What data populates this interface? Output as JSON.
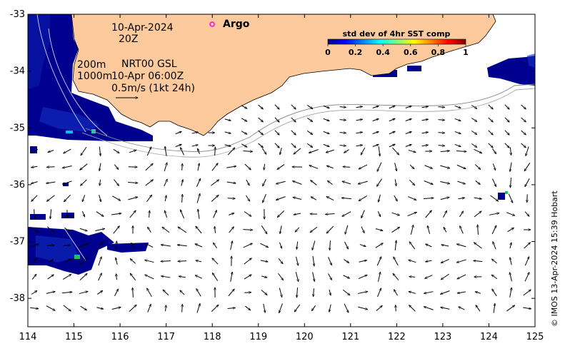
{
  "map": {
    "date_label": "10-Apr-2024",
    "hour_label": "20Z",
    "argo_label": "Argo",
    "depth_label_1": "200m",
    "depth_label_2": "1000m",
    "source_label": "NRT00 GSL",
    "source_time": "10-Apr 06:00Z",
    "scale_label": "0.5m/s (1kt 24h)",
    "copyright": "© IMOS 13-Apr-2024 15:39 Hobart",
    "x_ticks": [
      "114",
      "115",
      "116",
      "117",
      "118",
      "119",
      "120",
      "121",
      "122",
      "123",
      "124",
      "125"
    ],
    "y_ticks": [
      "-33",
      "-34",
      "-35",
      "-36",
      "-37",
      "-38"
    ],
    "lon_range": [
      114,
      125
    ],
    "lat_range": [
      -38.5,
      -33
    ],
    "colors": {
      "land": "#fdca9d",
      "ocean": "#ffffff",
      "sst_low": "#00008f",
      "argo": "#ff00ff"
    }
  },
  "colorbar": {
    "title": "std dev of 4hr SST comp",
    "ticks": [
      "0",
      "0.2",
      "0.4",
      "0.6",
      "0.8",
      "1"
    ],
    "range": [
      0,
      1
    ]
  }
}
